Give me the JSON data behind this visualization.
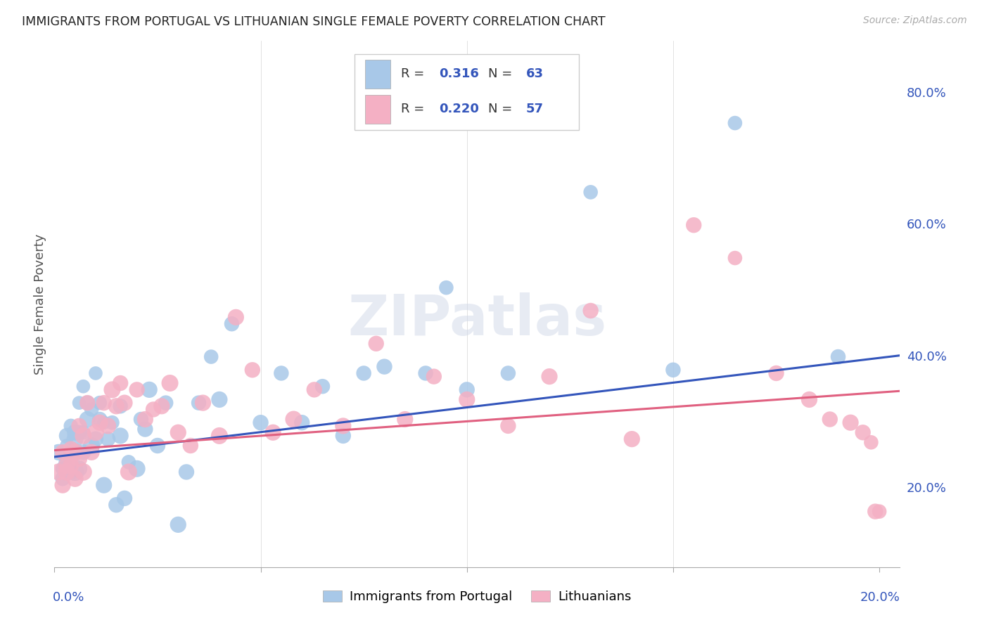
{
  "title": "IMMIGRANTS FROM PORTUGAL VS LITHUANIAN SINGLE FEMALE POVERTY CORRELATION CHART",
  "source": "Source: ZipAtlas.com",
  "ylabel": "Single Female Poverty",
  "right_yticks": [
    "80.0%",
    "60.0%",
    "40.0%",
    "20.0%"
  ],
  "right_ytick_vals": [
    0.8,
    0.6,
    0.4,
    0.2
  ],
  "blue_R": "0.316",
  "blue_N": "63",
  "pink_R": "0.220",
  "pink_N": "57",
  "blue_color": "#a8c8e8",
  "pink_color": "#f4b0c4",
  "blue_line_color": "#3355bb",
  "pink_line_color": "#e06080",
  "legend_label_blue": "Immigrants from Portugal",
  "legend_label_pink": "Lithuanians",
  "watermark": "ZIPatlas",
  "blue_scatter_x": [
    0.001,
    0.002,
    0.002,
    0.003,
    0.003,
    0.003,
    0.004,
    0.004,
    0.004,
    0.005,
    0.005,
    0.005,
    0.005,
    0.006,
    0.006,
    0.006,
    0.007,
    0.007,
    0.007,
    0.008,
    0.008,
    0.009,
    0.009,
    0.01,
    0.01,
    0.011,
    0.011,
    0.012,
    0.012,
    0.013,
    0.014,
    0.015,
    0.016,
    0.016,
    0.017,
    0.018,
    0.02,
    0.021,
    0.022,
    0.023,
    0.025,
    0.027,
    0.03,
    0.032,
    0.035,
    0.038,
    0.04,
    0.043,
    0.05,
    0.055,
    0.06,
    0.065,
    0.07,
    0.075,
    0.08,
    0.09,
    0.095,
    0.1,
    0.11,
    0.13,
    0.15,
    0.165,
    0.19
  ],
  "blue_scatter_y": [
    0.255,
    0.23,
    0.215,
    0.28,
    0.24,
    0.265,
    0.295,
    0.25,
    0.225,
    0.275,
    0.255,
    0.225,
    0.285,
    0.33,
    0.285,
    0.23,
    0.355,
    0.285,
    0.255,
    0.305,
    0.33,
    0.32,
    0.265,
    0.375,
    0.275,
    0.305,
    0.33,
    0.3,
    0.205,
    0.275,
    0.3,
    0.175,
    0.325,
    0.28,
    0.185,
    0.24,
    0.23,
    0.305,
    0.29,
    0.35,
    0.265,
    0.33,
    0.145,
    0.225,
    0.33,
    0.4,
    0.335,
    0.45,
    0.3,
    0.375,
    0.3,
    0.355,
    0.28,
    0.375,
    0.385,
    0.375,
    0.505,
    0.35,
    0.375,
    0.65,
    0.38,
    0.755,
    0.4
  ],
  "blue_scatter_size": [
    280,
    220,
    240,
    260,
    280,
    200,
    220,
    240,
    260,
    300,
    320,
    340,
    280,
    200,
    240,
    280,
    200,
    220,
    260,
    280,
    240,
    220,
    300,
    200,
    260,
    240,
    220,
    200,
    280,
    240,
    220,
    260,
    240,
    280,
    260,
    220,
    300,
    240,
    260,
    280,
    260,
    240,
    280,
    260,
    240,
    220,
    280,
    240,
    260,
    240,
    260,
    240,
    260,
    240,
    260,
    240,
    220,
    260,
    240,
    220,
    240,
    220,
    240
  ],
  "pink_scatter_x": [
    0.001,
    0.002,
    0.002,
    0.003,
    0.003,
    0.004,
    0.004,
    0.005,
    0.005,
    0.006,
    0.006,
    0.007,
    0.007,
    0.008,
    0.009,
    0.01,
    0.011,
    0.012,
    0.013,
    0.014,
    0.015,
    0.016,
    0.017,
    0.018,
    0.02,
    0.022,
    0.024,
    0.026,
    0.028,
    0.03,
    0.033,
    0.036,
    0.04,
    0.044,
    0.048,
    0.053,
    0.058,
    0.063,
    0.07,
    0.078,
    0.085,
    0.092,
    0.1,
    0.11,
    0.12,
    0.13,
    0.14,
    0.155,
    0.165,
    0.175,
    0.183,
    0.188,
    0.193,
    0.196,
    0.198,
    0.199,
    0.2
  ],
  "pink_scatter_y": [
    0.225,
    0.255,
    0.205,
    0.235,
    0.225,
    0.26,
    0.235,
    0.215,
    0.255,
    0.295,
    0.245,
    0.28,
    0.225,
    0.33,
    0.255,
    0.285,
    0.3,
    0.33,
    0.295,
    0.35,
    0.325,
    0.36,
    0.33,
    0.225,
    0.35,
    0.305,
    0.32,
    0.325,
    0.36,
    0.285,
    0.265,
    0.33,
    0.28,
    0.46,
    0.38,
    0.285,
    0.305,
    0.35,
    0.295,
    0.42,
    0.305,
    0.37,
    0.335,
    0.295,
    0.37,
    0.47,
    0.275,
    0.6,
    0.55,
    0.375,
    0.335,
    0.305,
    0.3,
    0.285,
    0.27,
    0.165,
    0.165
  ],
  "pink_scatter_size": [
    300,
    260,
    280,
    300,
    320,
    260,
    280,
    300,
    320,
    260,
    280,
    300,
    320,
    260,
    280,
    300,
    280,
    260,
    280,
    300,
    280,
    260,
    280,
    300,
    260,
    280,
    260,
    280,
    300,
    280,
    260,
    280,
    300,
    280,
    260,
    280,
    300,
    260,
    280,
    260,
    280,
    260,
    280,
    260,
    280,
    260,
    280,
    260,
    220,
    260,
    280,
    260,
    280,
    260,
    220,
    260,
    220
  ],
  "xlim": [
    0.0,
    0.205
  ],
  "ylim": [
    0.08,
    0.88
  ],
  "blue_trend_x": [
    0.0,
    0.205
  ],
  "blue_trend_y": [
    0.248,
    0.402
  ],
  "pink_trend_x": [
    0.0,
    0.205
  ],
  "pink_trend_y": [
    0.258,
    0.348
  ]
}
